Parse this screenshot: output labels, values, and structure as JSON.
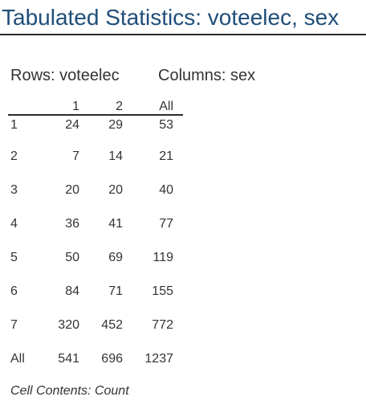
{
  "title": "Tabulated Statistics: voteelec, sex",
  "rows_label": "Rows: voteelec",
  "columns_label": "Columns: sex",
  "table": {
    "header": [
      "",
      "1",
      "2",
      "All"
    ],
    "rows": [
      [
        "1",
        "24",
        "29",
        "53"
      ],
      [
        "2",
        "7",
        "14",
        "21"
      ],
      [
        "3",
        "20",
        "20",
        "40"
      ],
      [
        "4",
        "36",
        "41",
        "77"
      ],
      [
        "5",
        "50",
        "69",
        "119"
      ],
      [
        "6",
        "84",
        "71",
        "155"
      ],
      [
        "7",
        "320",
        "452",
        "772"
      ],
      [
        "All",
        "541",
        "696",
        "1237"
      ]
    ]
  },
  "cell_contents": "Cell Contents:  Count"
}
